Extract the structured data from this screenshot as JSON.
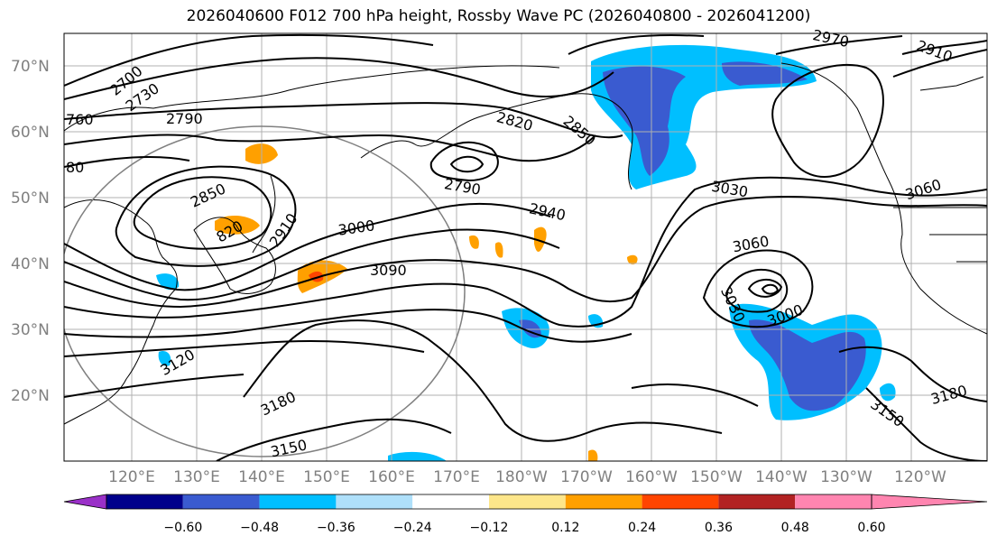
{
  "title": "2026040600 F012 700 hPa height, Rossby Wave PC (2026040800 - 2026041200)",
  "lat_labels": [
    "70°N",
    "60°N",
    "50°N",
    "40°N",
    "30°N",
    "20°N"
  ],
  "lon_labels": [
    "120°E",
    "130°E",
    "140°E",
    "150°E",
    "160°E",
    "170°E",
    "180°W",
    "170°W",
    "160°W",
    "150°W",
    "140°W",
    "130°W",
    "120°W"
  ],
  "contour_labels": [
    "2700",
    "2730",
    "760",
    "2790",
    "80",
    "2850",
    "820",
    "2910",
    "3000",
    "3090",
    "3120",
    "3180",
    "3150",
    "2820",
    "2850",
    "2790",
    "2940",
    "3030",
    "2970",
    "2910",
    "3060",
    "3060",
    "3030",
    "3000",
    "3150",
    "3180"
  ],
  "colorbar": {
    "ticks": [
      "−0.60",
      "−0.48",
      "−0.36",
      "−0.24",
      "−0.12",
      "0.12",
      "0.24",
      "0.36",
      "0.48",
      "0.60"
    ],
    "colors": [
      "#9a30c8",
      "#00008b",
      "#3a5bd0",
      "#00bfff",
      "#afe0fa",
      "#ffffff",
      "#fde68a",
      "#ffa000",
      "#ff4500",
      "#b22222",
      "#ff85b0"
    ]
  },
  "colors": {
    "negative_dark": "#3a5bd0",
    "negative_mid": "#00bfff",
    "positive_orange": "#ffa000",
    "positive_red": "#ff4500",
    "grid": "#b0b0b0"
  }
}
